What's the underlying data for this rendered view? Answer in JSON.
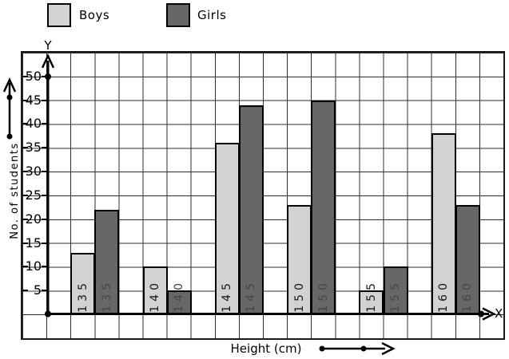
{
  "chart_data": {
    "type": "bar",
    "title": "",
    "categories": [
      "135",
      "140",
      "145",
      "150",
      "155",
      "160"
    ],
    "series": [
      {
        "name": "Boys",
        "color": "#d2d2d2",
        "label_color": "#161616",
        "values": [
          13,
          10,
          36,
          23,
          5,
          38
        ]
      },
      {
        "name": "Girls",
        "color": "#676767",
        "label_color": "#454545",
        "values": [
          22,
          5,
          44,
          45,
          10,
          23
        ]
      }
    ],
    "xlabel": "Height (cm)",
    "ylabel": "No. of students",
    "yticks": [
      5,
      10,
      15,
      20,
      25,
      30,
      35,
      40,
      45,
      50
    ],
    "ytick_step": 5,
    "ylim": [
      -5,
      55
    ],
    "grid": true,
    "legend_position": "top-left",
    "axis_letters": {
      "x": "X",
      "y": "Y"
    },
    "bar_labels": "category value rotated vertically inside base of each bar"
  }
}
